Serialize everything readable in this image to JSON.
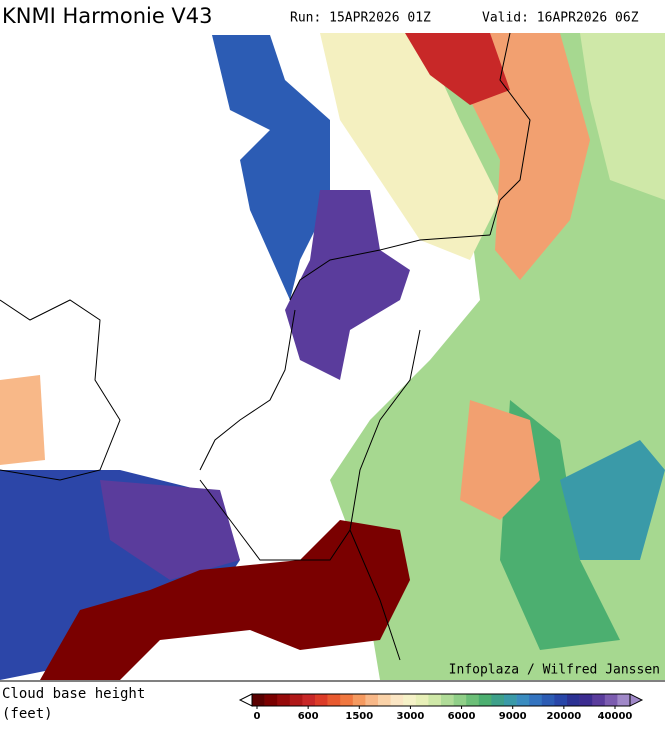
{
  "header": {
    "title": "KNMI Harmonie V43",
    "run": "Run: 15APR2026 01Z",
    "valid": "Valid: 16APR2026 06Z"
  },
  "credit": "Infoplaza / Wilfred Janssen",
  "legend": {
    "label_lines": [
      "Cloud base height",
      "(feet)"
    ],
    "colors": [
      "#5a0000",
      "#7a0000",
      "#960a0a",
      "#b01818",
      "#c82828",
      "#dc3c28",
      "#e85a30",
      "#f07840",
      "#f59a60",
      "#f8b888",
      "#fad2a8",
      "#fbe6c4",
      "#f6f2c8",
      "#e8f0b8",
      "#cfe8a8",
      "#b0dc98",
      "#90cf88",
      "#6cbf78",
      "#4caf70",
      "#3ea08a",
      "#3a9aa8",
      "#3a8cc0",
      "#3474c0",
      "#2c5cb4",
      "#2846a8",
      "#2c3294",
      "#3c2c90",
      "#5a3c9c",
      "#7c5cb0",
      "#a088c8"
    ],
    "ticks": [
      0,
      600,
      1500,
      3000,
      6000,
      9000,
      20000,
      40000
    ]
  }
}
